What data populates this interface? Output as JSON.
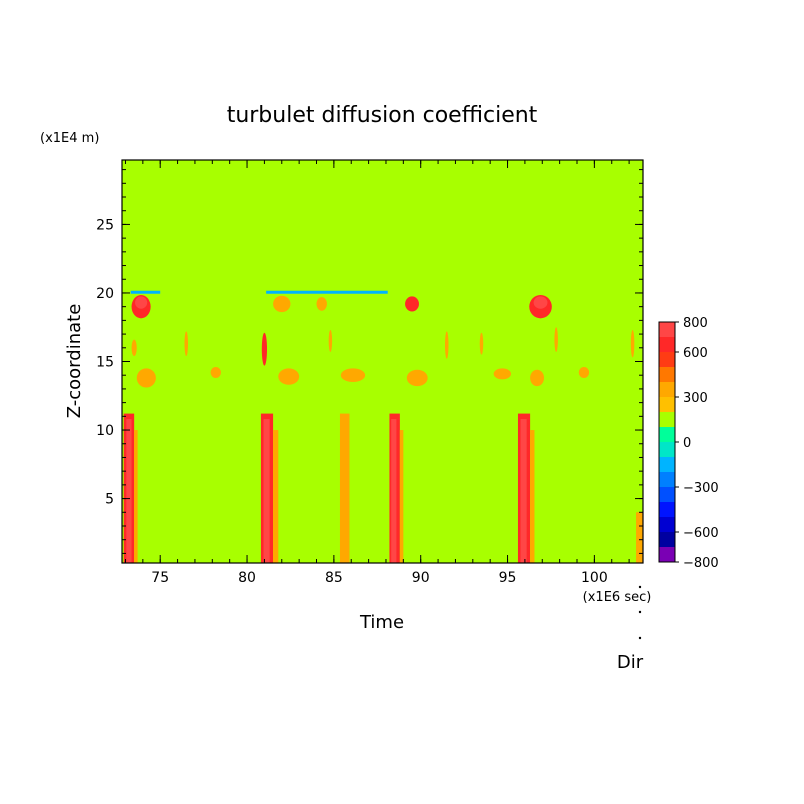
{
  "chart_data": {
    "type": "heatmap",
    "title": "turbulet diffusion coefficient",
    "xlabel": "Time",
    "ylabel": "Z-coordinate",
    "x_unit": "(x1E6 sec)",
    "y_unit": "(x1E4 m)",
    "xlim": [
      72.8,
      102.8
    ],
    "ylim": [
      0.3,
      29.7
    ],
    "x_ticks": [
      75,
      80,
      85,
      90,
      95,
      100
    ],
    "y_ticks": [
      5,
      10,
      15,
      20,
      25
    ],
    "background_value": 100,
    "colorbar": {
      "levels": [
        -800,
        -700,
        -600,
        -500,
        -400,
        -300,
        -200,
        -100,
        0,
        100,
        200,
        300,
        400,
        500,
        600,
        700,
        800
      ],
      "colors": [
        "#7a00b4",
        "#0000a0",
        "#0000d2",
        "#0014ff",
        "#0050ff",
        "#0080ff",
        "#00b4ff",
        "#00e6c8",
        "#00ff9a",
        "#a8ff00",
        "#ffc000",
        "#ffa800",
        "#ff7800",
        "#ff3c14",
        "#ff2828",
        "#ff4646",
        "#ffb4b4"
      ],
      "tick_labels": [
        "800",
        "600",
        "300",
        "0",
        "−300",
        "−600",
        "−800"
      ],
      "tick_values": [
        800,
        600,
        300,
        0,
        -300,
        -600,
        -800
      ]
    },
    "features": [
      {
        "kind": "band",
        "x0": 72.9,
        "x1": 73.5,
        "y0": 0.3,
        "y1": 11.2,
        "value": 650
      },
      {
        "kind": "band",
        "x0": 73.05,
        "x1": 73.35,
        "y0": 0.3,
        "y1": 10.8,
        "value": 750
      },
      {
        "kind": "band",
        "x0": 73.5,
        "x1": 73.7,
        "y0": 0.3,
        "y1": 10,
        "value": 350
      },
      {
        "kind": "band",
        "x0": 80.8,
        "x1": 81.5,
        "y0": 0.3,
        "y1": 11.2,
        "value": 650
      },
      {
        "kind": "band",
        "x0": 80.95,
        "x1": 81.3,
        "y0": 0.3,
        "y1": 10.8,
        "value": 750
      },
      {
        "kind": "band",
        "x0": 81.5,
        "x1": 81.8,
        "y0": 0.3,
        "y1": 10,
        "value": 350
      },
      {
        "kind": "band",
        "x0": 85.35,
        "x1": 85.9,
        "y0": 0.3,
        "y1": 11.2,
        "value": 350
      },
      {
        "kind": "band",
        "x0": 88.2,
        "x1": 88.8,
        "y0": 0.3,
        "y1": 11.2,
        "value": 650
      },
      {
        "kind": "band",
        "x0": 88.3,
        "x1": 88.6,
        "y0": 0.3,
        "y1": 10.8,
        "value": 750
      },
      {
        "kind": "band",
        "x0": 88.8,
        "x1": 89.0,
        "y0": 0.3,
        "y1": 10,
        "value": 350
      },
      {
        "kind": "band",
        "x0": 95.6,
        "x1": 96.3,
        "y0": 0.3,
        "y1": 11.2,
        "value": 650
      },
      {
        "kind": "band",
        "x0": 95.75,
        "x1": 96.1,
        "y0": 0.3,
        "y1": 10.8,
        "value": 750
      },
      {
        "kind": "band",
        "x0": 96.3,
        "x1": 96.55,
        "y0": 0.3,
        "y1": 10,
        "value": 350
      },
      {
        "kind": "band",
        "x0": 102.4,
        "x1": 102.8,
        "y0": 0.3,
        "y1": 4,
        "value": 350
      },
      {
        "kind": "line",
        "x0": 73.3,
        "x1": 75.0,
        "y": 20.05,
        "value": -150
      },
      {
        "kind": "line",
        "x0": 81.1,
        "x1": 88.1,
        "y": 20.05,
        "value": -150
      },
      {
        "kind": "blob",
        "x": 73.9,
        "y": 19.0,
        "rx": 0.55,
        "ry": 0.85,
        "value": 650
      },
      {
        "kind": "blob",
        "x": 73.9,
        "y": 19.3,
        "rx": 0.35,
        "ry": 0.45,
        "value": 750
      },
      {
        "kind": "blob",
        "x": 82.0,
        "y": 19.2,
        "rx": 0.5,
        "ry": 0.6,
        "value": 350
      },
      {
        "kind": "blob",
        "x": 84.3,
        "y": 19.2,
        "rx": 0.3,
        "ry": 0.5,
        "value": 350
      },
      {
        "kind": "blob",
        "x": 89.5,
        "y": 19.2,
        "rx": 0.4,
        "ry": 0.55,
        "value": 650
      },
      {
        "kind": "blob",
        "x": 96.9,
        "y": 19.0,
        "rx": 0.65,
        "ry": 0.85,
        "value": 650
      },
      {
        "kind": "blob",
        "x": 96.9,
        "y": 19.3,
        "rx": 0.4,
        "ry": 0.45,
        "value": 750
      },
      {
        "kind": "blob",
        "x": 74.2,
        "y": 13.8,
        "rx": 0.55,
        "ry": 0.7,
        "value": 350
      },
      {
        "kind": "blob",
        "x": 82.4,
        "y": 13.9,
        "rx": 0.6,
        "ry": 0.6,
        "value": 350
      },
      {
        "kind": "blob",
        "x": 86.1,
        "y": 14.0,
        "rx": 0.7,
        "ry": 0.5,
        "value": 350
      },
      {
        "kind": "blob",
        "x": 89.8,
        "y": 13.8,
        "rx": 0.6,
        "ry": 0.6,
        "value": 350
      },
      {
        "kind": "blob",
        "x": 94.7,
        "y": 14.1,
        "rx": 0.5,
        "ry": 0.4,
        "value": 350
      },
      {
        "kind": "blob",
        "x": 96.7,
        "y": 13.8,
        "rx": 0.4,
        "ry": 0.6,
        "value": 350
      },
      {
        "kind": "blob",
        "x": 78.2,
        "y": 14.2,
        "rx": 0.3,
        "ry": 0.4,
        "value": 350
      },
      {
        "kind": "blob",
        "x": 99.4,
        "y": 14.2,
        "rx": 0.3,
        "ry": 0.4,
        "value": 350
      },
      {
        "kind": "blob",
        "x": 73.5,
        "y": 16.0,
        "rx": 0.15,
        "ry": 0.6,
        "value": 350
      },
      {
        "kind": "blob",
        "x": 81.0,
        "y": 15.9,
        "rx": 0.15,
        "ry": 1.2,
        "value": 650
      },
      {
        "kind": "blob",
        "x": 76.5,
        "y": 16.3,
        "rx": 0.1,
        "ry": 0.9,
        "value": 350
      },
      {
        "kind": "blob",
        "x": 84.8,
        "y": 16.5,
        "rx": 0.1,
        "ry": 0.8,
        "value": 350
      },
      {
        "kind": "blob",
        "x": 91.5,
        "y": 16.2,
        "rx": 0.1,
        "ry": 1.0,
        "value": 350
      },
      {
        "kind": "blob",
        "x": 93.5,
        "y": 16.3,
        "rx": 0.1,
        "ry": 0.8,
        "value": 350
      },
      {
        "kind": "blob",
        "x": 97.8,
        "y": 16.6,
        "rx": 0.1,
        "ry": 0.9,
        "value": 350
      },
      {
        "kind": "blob",
        "x": 102.2,
        "y": 16.3,
        "rx": 0.1,
        "ry": 1.0,
        "value": 350
      }
    ]
  },
  "annotations": {
    "direction_label": "Dir"
  }
}
